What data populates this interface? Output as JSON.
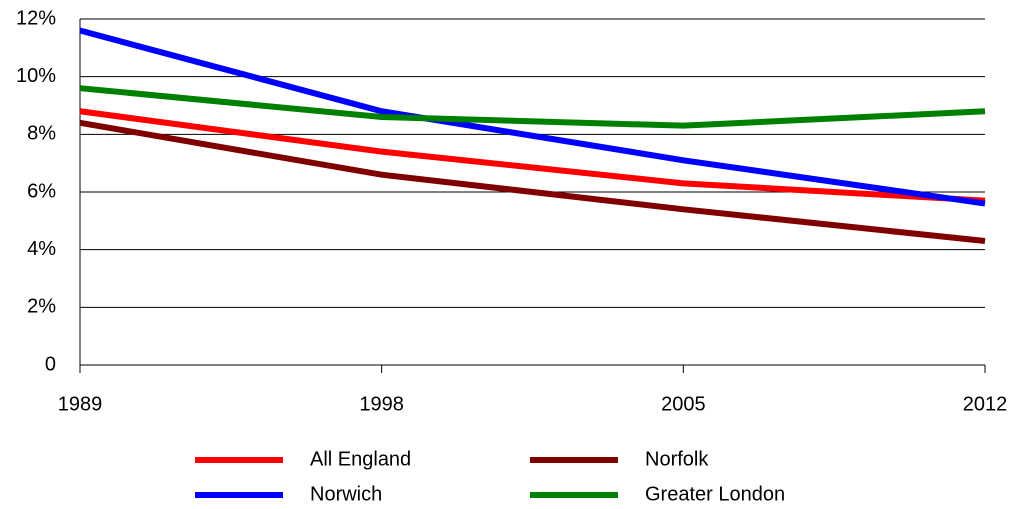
{
  "chart_data": {
    "type": "line",
    "categories": [
      "1989",
      "1998",
      "2005",
      "2012"
    ],
    "series": [
      {
        "name": "All England",
        "color": "#ff0000",
        "values": [
          8.8,
          7.4,
          6.3,
          5.7
        ]
      },
      {
        "name": "Norwich",
        "color": "#0000ff",
        "values": [
          11.6,
          8.8,
          7.1,
          5.6
        ]
      },
      {
        "name": "Norfolk",
        "color": "#800000",
        "values": [
          8.4,
          6.6,
          5.4,
          4.3
        ]
      },
      {
        "name": "Greater London",
        "color": "#008000",
        "values": [
          9.6,
          8.6,
          8.3,
          8.8
        ]
      }
    ],
    "ylim": [
      0,
      12
    ],
    "yticks": [
      0,
      {
        "value": 2,
        "label": "2%"
      },
      {
        "value": 4,
        "label": "4%"
      },
      {
        "value": 6,
        "label": "6%"
      },
      {
        "value": 8,
        "label": "8%"
      },
      {
        "value": 10,
        "label": "10%"
      },
      {
        "value": 12,
        "label": "12%"
      }
    ],
    "grid": true,
    "legend": "bottom"
  }
}
